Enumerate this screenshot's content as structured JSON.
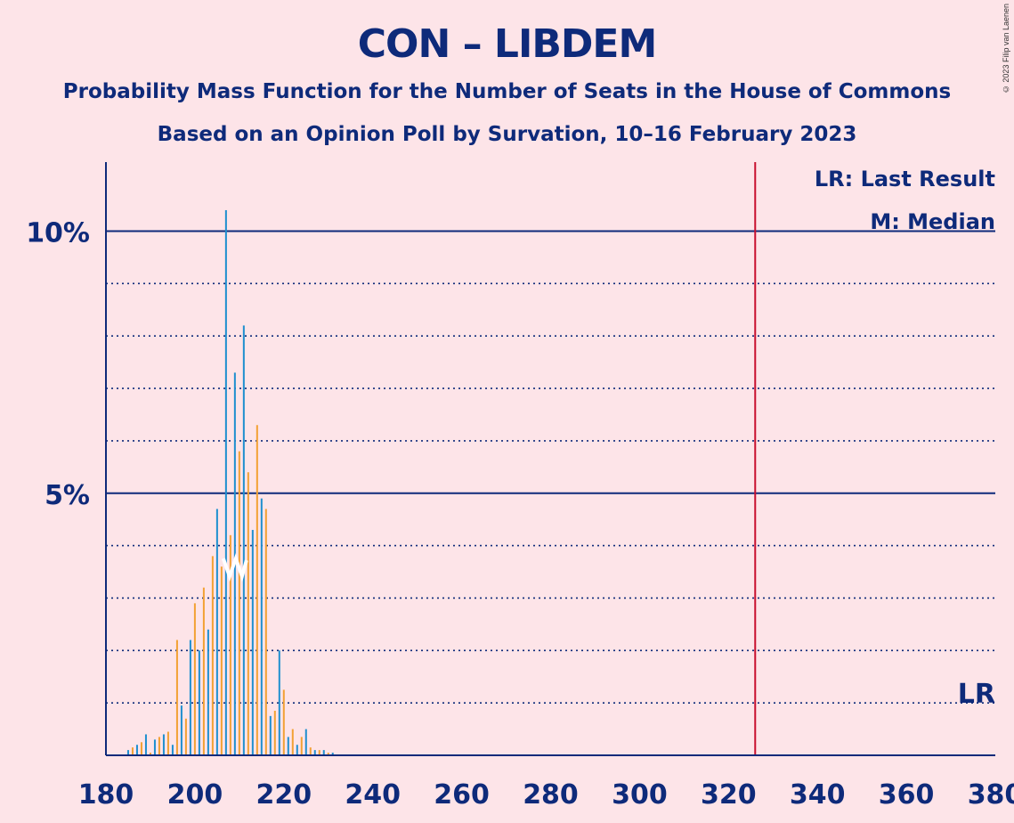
{
  "title": "CON – LIBDEM",
  "subtitle": "Probability Mass Function for the Number of Seats in the House of Commons",
  "poll_info": "Based on an Opinion Poll by Survation, 10–16 February 2023",
  "copyright": "© 2023 Filip van Laenen",
  "legend": {
    "last_result": "LR: Last Result",
    "median": "M: Median"
  },
  "markers": {
    "lr_label": "LR",
    "median_label": "M",
    "majority_seats": 326,
    "median_seats": 209
  },
  "colors": {
    "background": "#fde4e8",
    "axis": "#0e2a7a",
    "series_blue": "#1f8fcf",
    "series_orange": "#f2a134",
    "majority_line": "#c8102e"
  },
  "chart_data": {
    "type": "bar",
    "xlim": [
      180,
      380
    ],
    "ylim": [
      0,
      11.3
    ],
    "y_unit": "%",
    "x_ticks": [
      "180",
      "200",
      "220",
      "240",
      "260",
      "280",
      "300",
      "320",
      "340",
      "360",
      "380"
    ],
    "y_ticks": [
      "5%",
      "10%"
    ],
    "grid": "dotted every 1%, solid at 5% and 10%",
    "series": [
      {
        "color": "blue",
        "x": [
          185,
          187,
          189,
          191,
          193,
          195,
          197,
          199,
          201,
          203,
          205,
          207,
          209,
          211,
          213,
          215,
          217,
          219,
          221,
          223,
          225,
          227,
          229,
          231
        ],
        "values": [
          0.1,
          0.2,
          0.4,
          0.3,
          0.4,
          0.2,
          0.95,
          2.2,
          2.0,
          2.4,
          4.7,
          10.4,
          7.3,
          8.2,
          4.3,
          4.9,
          0.75,
          2.0,
          0.35,
          0.2,
          0.5,
          0.1,
          0.1,
          0.05
        ]
      },
      {
        "color": "orange",
        "x": [
          186,
          188,
          190,
          192,
          194,
          196,
          198,
          200,
          202,
          204,
          206,
          208,
          210,
          212,
          214,
          216,
          218,
          220,
          222,
          224,
          226,
          228,
          230
        ],
        "values": [
          0.15,
          0.25,
          0.05,
          0.35,
          0.45,
          2.2,
          0.7,
          2.9,
          3.2,
          3.8,
          3.6,
          4.2,
          5.8,
          5.4,
          6.3,
          4.7,
          0.85,
          1.25,
          0.5,
          0.35,
          0.15,
          0.1,
          0.05
        ]
      }
    ]
  }
}
